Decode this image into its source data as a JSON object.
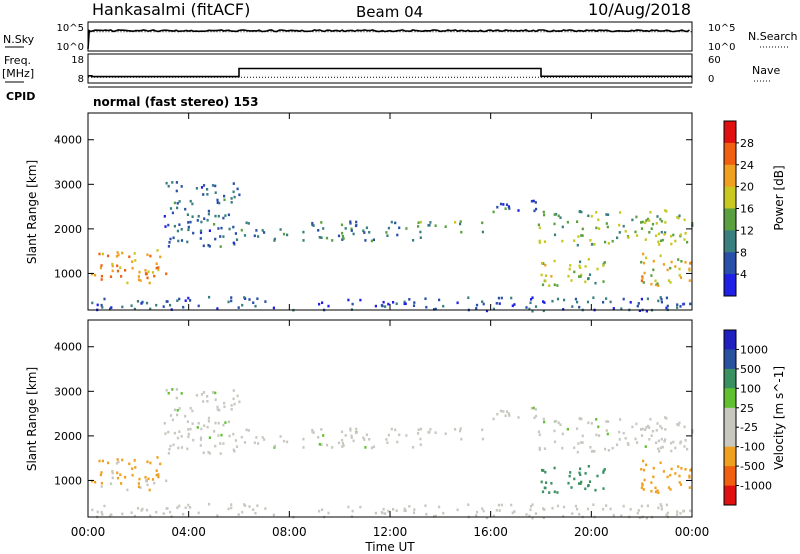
{
  "header": {
    "station": "Hankasalmi (fitACF)",
    "beam": "Beam 04",
    "date": "10/Aug/2018"
  },
  "noise_panel": {
    "left_label": "N.Sky",
    "right_label": "N.Search",
    "left_ticks": [
      "10^5",
      "10^0"
    ],
    "right_ticks": [
      "10^5",
      "10^0"
    ],
    "sky_level": 0.7,
    "search_level": 0.7
  },
  "freq_panel": {
    "left_label_1": "Freq.",
    "left_label_2": "[MHz]",
    "right_label": "Nave",
    "left_ticks": [
      "18",
      "8"
    ],
    "right_ticks": [
      "60",
      "0"
    ],
    "freq_segments": [
      {
        "t0": 0.0,
        "t1": 0.15,
        "value": 10.5
      },
      {
        "t0": 0.15,
        "t1": 6.0,
        "value": 10.2
      },
      {
        "t0": 6.0,
        "t1": 18.0,
        "value": 13.0
      },
      {
        "t0": 18.0,
        "t1": 24.0,
        "value": 10.3
      }
    ],
    "nave_value": 12
  },
  "cpid": {
    "label": "CPID",
    "mode": "normal (fast stereo) 153"
  },
  "power_panel": {
    "ylabel": "Slant Range [km]",
    "cbar_label": "Power [dB]",
    "cbar_ticks": [
      "28",
      "24",
      "20",
      "16",
      "12",
      "8",
      "4"
    ],
    "cbar_colors": [
      "#1f1fe6",
      "#2a4fa8",
      "#3a7f7f",
      "#5aa040",
      "#c8c820",
      "#f0a020",
      "#f06010",
      "#e01010"
    ]
  },
  "velocity_panel": {
    "ylabel": "Slant Range [km]",
    "cbar_label": "Velocity [m s^-1]",
    "cbar_ticks": [
      "1000",
      "500",
      "100",
      "25",
      "-25",
      "-100",
      "-500",
      "-1000"
    ],
    "cbar_colors": [
      "#e01010",
      "#f06010",
      "#f0a020",
      "#c8c8c0",
      "#c8c8c0",
      "#60c030",
      "#3a9060",
      "#2a50a0",
      "#2020c0"
    ]
  },
  "x_axis": {
    "label": "Time UT",
    "ticks": [
      "00:00",
      "04:00",
      "08:00",
      "12:00",
      "16:00",
      "20:00",
      "00:00"
    ],
    "range": [
      0,
      24
    ]
  },
  "y_axis_ticks": [
    "4000",
    "3000",
    "2000",
    "1000"
  ],
  "chart_data": {
    "type": "heatmap",
    "x_range_hours": [
      0,
      24
    ],
    "y_range_km": [
      180,
      4600
    ],
    "regions": [
      {
        "t0": 0.1,
        "t1": 3.4,
        "r0": 800,
        "r1": 1550,
        "power_db": 22,
        "velocity": -110
      },
      {
        "t0": 3.0,
        "t1": 6.0,
        "r0": 1600,
        "r1": 3100,
        "power_db": 8,
        "velocity": 0
      },
      {
        "t0": 6.0,
        "t1": 13.8,
        "r0": 1750,
        "r1": 2200,
        "power_db": 10,
        "velocity": 0
      },
      {
        "t0": 13.0,
        "t1": 15.8,
        "r0": 1950,
        "r1": 2200,
        "power_db": 14,
        "velocity": 0
      },
      {
        "t0": 15.8,
        "t1": 17.8,
        "r0": 2400,
        "r1": 2700,
        "power_db": 8,
        "velocity": 0
      },
      {
        "t0": 17.8,
        "t1": 24.0,
        "r0": 1650,
        "r1": 2450,
        "power_db": 15,
        "velocity": 0
      },
      {
        "t0": 17.8,
        "t1": 20.5,
        "r0": 700,
        "r1": 1350,
        "power_db": 16,
        "velocity": 400
      },
      {
        "t0": 21.8,
        "t1": 24.0,
        "r0": 700,
        "r1": 1500,
        "power_db": 20,
        "velocity": -300
      },
      {
        "t0": 0.0,
        "t1": 24.0,
        "r0": 180,
        "r1": 500,
        "power_db": 6,
        "velocity": -60
      }
    ]
  }
}
